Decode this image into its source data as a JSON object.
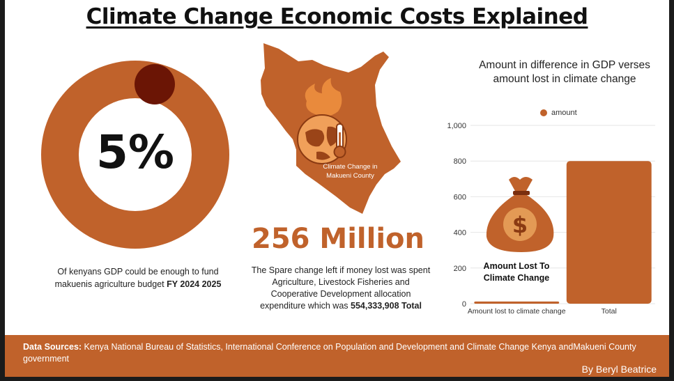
{
  "title": "Climate Change Economic Costs Explained",
  "colors": {
    "accent": "#c0622b",
    "dark_accent": "#6b1505",
    "frame": "#1b1b1b"
  },
  "donut": {
    "value_label": "5%",
    "percent": 5,
    "caption_text": "Of kenyans GDP  could be enough to fund   makuenis agriculture budget",
    "caption_bold": "FY 2024 2025"
  },
  "map": {
    "label": "Climate Change in Makueni County",
    "icon": "globe-thermometer-fire-icon"
  },
  "headline_number": "256 Million",
  "spare_change": {
    "text": "The Spare change left if money lost was spent  Agriculture, Livestock Fisheries and Cooperative Development allocation expenditure which was",
    "bold": "554,333,908 Total"
  },
  "money_bag": {
    "icon": "money-bag-icon",
    "label": "Amount Lost To Climate Change"
  },
  "chart_data": {
    "type": "bar",
    "title": "Amount in difference in GDP verses amount lost in climate change",
    "legend": [
      "amount"
    ],
    "legend_position": "top",
    "categories": [
      "Amount lost to climate change",
      "Total"
    ],
    "series": [
      {
        "name": "amount",
        "values": [
          12,
          800
        ]
      }
    ],
    "y_ticks": [
      "0",
      "200",
      "400",
      "600",
      "800",
      "1,000"
    ],
    "ylim": [
      0,
      1000
    ],
    "grid": true
  },
  "footer": {
    "sources_label": "Data Sources:",
    "sources_text": " Kenya National Bureau of Statistics,  International Conference on Population and Development  and Climate Change Kenya andMakueni County government",
    "author": "By Beryl Beatrice"
  }
}
